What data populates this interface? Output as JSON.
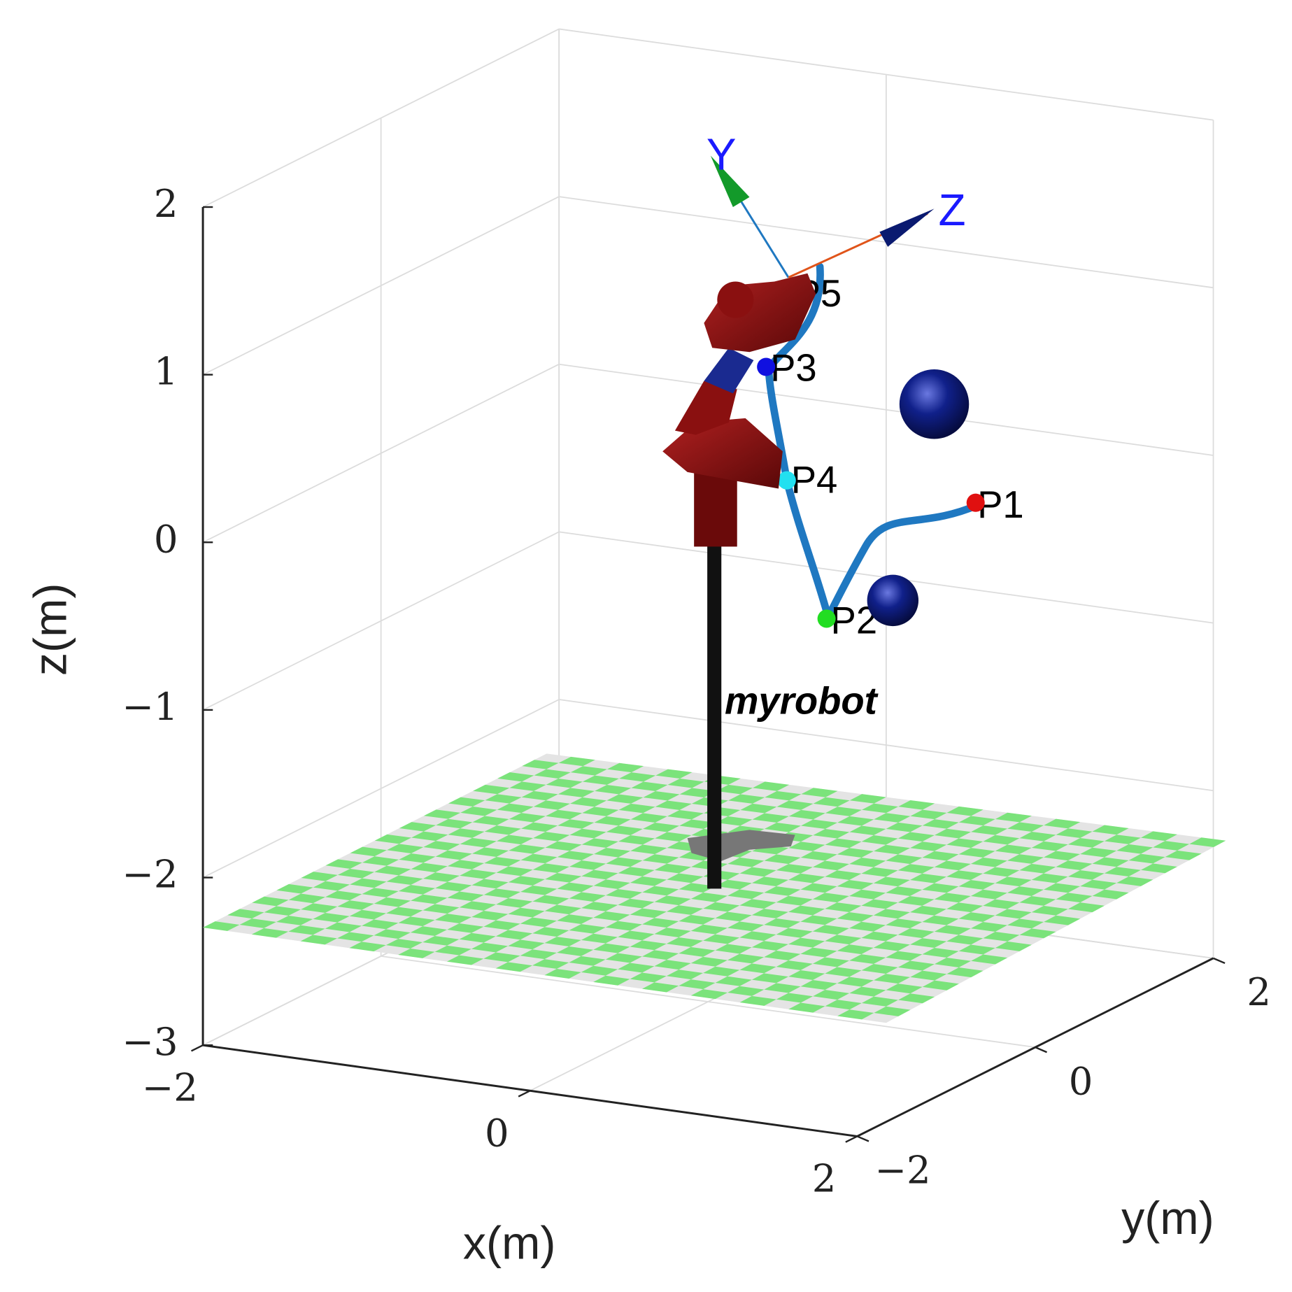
{
  "chart_data": {
    "type": "robot3d",
    "xlabel": "x(m)",
    "ylabel": "y(m)",
    "zlabel": "z(m)",
    "xlim": [
      -2,
      2
    ],
    "ylim": [
      -2,
      2
    ],
    "zlim": [
      -3,
      2
    ],
    "xticks": [
      {
        "value": -2,
        "label": "−2"
      },
      0,
      2
    ],
    "yticks": [
      {
        "value": -2,
        "label": "−2"
      },
      0,
      2
    ],
    "zticks": [
      {
        "value": -3,
        "label": "−3"
      },
      {
        "value": -2,
        "label": "−2"
      },
      {
        "value": -1,
        "label": "−1"
      },
      0,
      1,
      2
    ],
    "grid": true,
    "robot_name": "myrobot",
    "waypoints": [
      "P1",
      "P2",
      "P3",
      "P4",
      "P5"
    ],
    "frame_axes": [
      "Y",
      "Z"
    ]
  }
}
